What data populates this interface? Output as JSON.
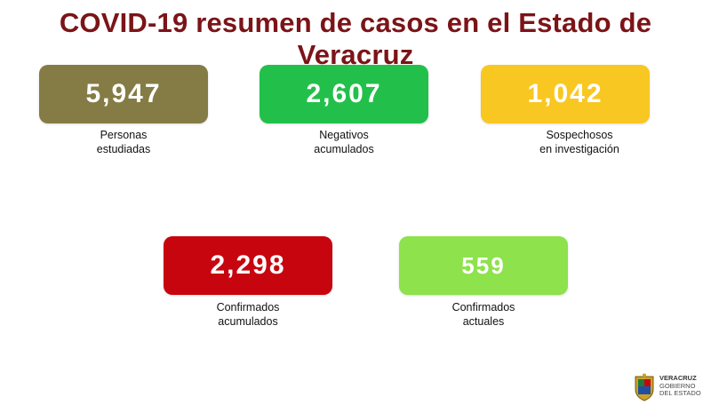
{
  "title": "COVID-19 resumen de casos en el Estado de Veracruz",
  "cards": [
    {
      "value": "5,947",
      "label_line1": "Personas",
      "label_line2": "estudiadas",
      "color": "#857b45"
    },
    {
      "value": "2,607",
      "label_line1": "Negativos",
      "label_line2": "acumulados",
      "color": "#22c04a"
    },
    {
      "value": "1,042",
      "label_line1": "Sospechosos",
      "label_line2": "en investigación",
      "color": "#f9c722"
    },
    {
      "value": "2,298",
      "label_line1": "Confirmados",
      "label_line2": "acumulados",
      "color": "#c7050f"
    },
    {
      "value": "559",
      "label_line1": "Confirmados",
      "label_line2": "actuales",
      "color": "#8ee24c"
    }
  ],
  "logo": {
    "line1": "VERACRUZ",
    "line2": "GOBIERNO",
    "line3": "DEL ESTADO"
  }
}
